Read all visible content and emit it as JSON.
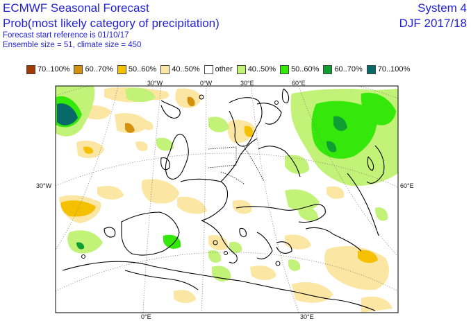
{
  "header": {
    "title": "ECMWF Seasonal Forecast",
    "subtitle": "Prob(most likely category of precipitation)",
    "start_ref": "Forecast start reference is 01/10/17",
    "ensemble": "Ensemble size = 51, climate size = 450",
    "system": "System 4",
    "season": "DJF 2017/18"
  },
  "legend": [
    {
      "label": "70..100%",
      "color": "#a33a05"
    },
    {
      "label": "60..70%",
      "color": "#d4900f"
    },
    {
      "label": "50..60%",
      "color": "#f5c000"
    },
    {
      "label": "40..50%",
      "color": "#fbe6a3"
    },
    {
      "label": "other",
      "color": "#ffffff"
    },
    {
      "label": "40..50%",
      "color": "#c2f277"
    },
    {
      "label": "50..60%",
      "color": "#33e80a"
    },
    {
      "label": "60..70%",
      "color": "#0f9e32"
    },
    {
      "label": "70..100%",
      "color": "#076a67"
    }
  ],
  "graticule_labels": {
    "top": [
      "30°W",
      "0°W",
      "30°E",
      "60°E"
    ],
    "left": "30°W",
    "right": "60°E",
    "bottom": [
      "0°E",
      "30°E"
    ]
  }
}
